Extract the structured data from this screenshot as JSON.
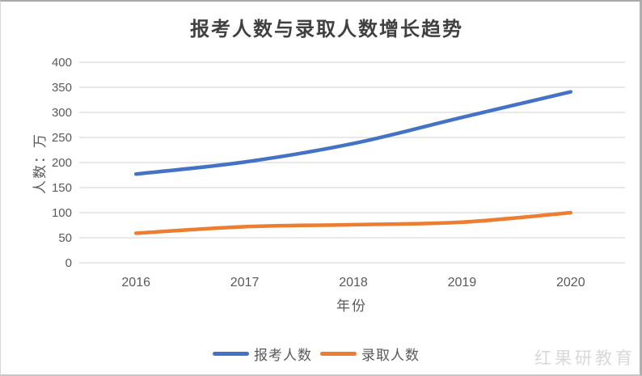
{
  "title": "报考人数与录取人数增长趋势",
  "watermark": "红果研教育",
  "colors": {
    "applicants_line": "#4472C4",
    "admitted_line": "#ED7D31",
    "gridline": "#D9D9D9",
    "axis_text": "#595959",
    "title_text": "#404040",
    "watermark_text": "#D8D8D8"
  },
  "chart_data": {
    "type": "line",
    "title": "报考人数与录取人数增长趋势",
    "categories": [
      "2016",
      "2017",
      "2018",
      "2019",
      "2020"
    ],
    "series": [
      {
        "name": "报考人数",
        "values": [
          177,
          201,
          238,
          290,
          341
        ],
        "color": "#4472C4"
      },
      {
        "name": "录取人数",
        "values": [
          59,
          72,
          76,
          81,
          100
        ],
        "color": "#ED7D31"
      }
    ],
    "xlabel": "年份",
    "ylabel": "人数：万",
    "ylim": [
      0,
      400
    ],
    "yticks": [
      0,
      50,
      100,
      150,
      200,
      250,
      300,
      350,
      400
    ],
    "grid": true,
    "legend_position": "bottom",
    "smoothed": true
  }
}
